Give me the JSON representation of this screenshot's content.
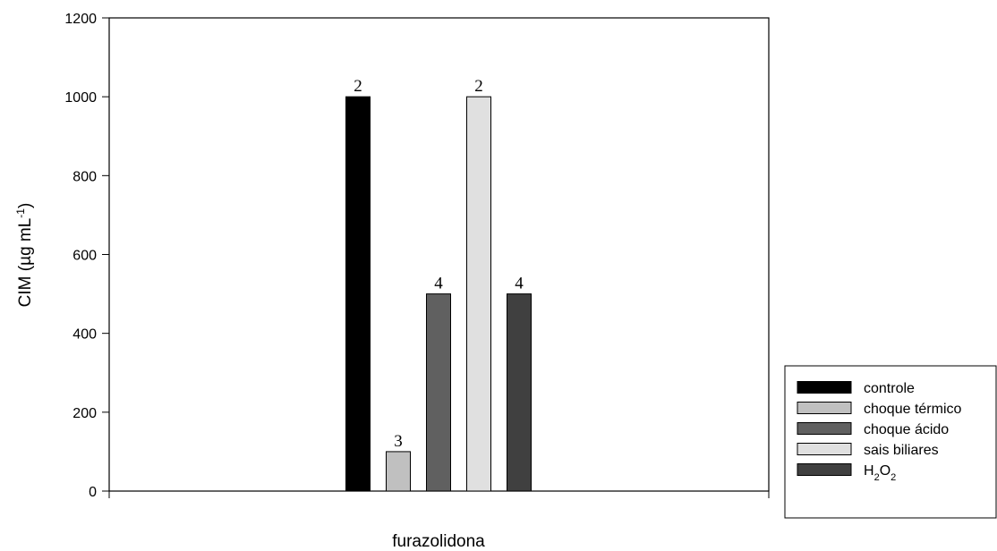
{
  "chart_data": {
    "type": "bar",
    "categories": [
      "furazolidona"
    ],
    "xlabel": "furazolidona",
    "ylabel": "CIM (µg mL",
    "ylabel_sup": "-1",
    "ylabel_close": ")",
    "ylim": [
      0,
      1200
    ],
    "yticks": [
      0,
      200,
      400,
      600,
      800,
      1000,
      1200
    ],
    "grid": false,
    "legend_position": "bottom-right",
    "series": [
      {
        "name": "controle",
        "values": [
          1000
        ],
        "label": "2",
        "color": "#000000"
      },
      {
        "name": "choque térmico",
        "values": [
          100
        ],
        "label": "3",
        "color": "#c0c0c0"
      },
      {
        "name": "choque ácido",
        "values": [
          500
        ],
        "label": "4",
        "color": "#606060"
      },
      {
        "name": "sais biliares",
        "values": [
          1000
        ],
        "label": "2",
        "color": "#e0e0e0"
      },
      {
        "name": "H2O2",
        "values": [
          500
        ],
        "label": "4",
        "color": "#404040"
      }
    ],
    "legend_h2o2": {
      "h": "H",
      "s1": "2",
      "o": "O",
      "s2": "2"
    }
  }
}
